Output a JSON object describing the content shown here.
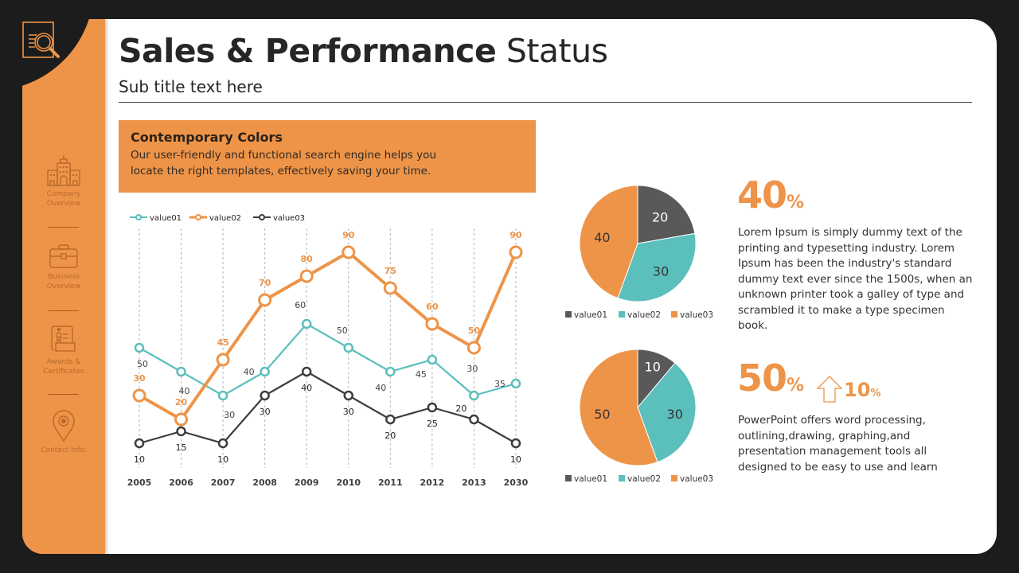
{
  "header": {
    "title_bold": "Sales & Performance",
    "title_light": "Status",
    "subtitle": "Sub title text here"
  },
  "sidebar": {
    "logo_icon": "document-search-icon",
    "items": [
      {
        "label_line1": "Company",
        "label_line2": "Overview",
        "icon": "building-icon"
      },
      {
        "label_line1": "Business",
        "label_line2": "Overview",
        "icon": "briefcase-icon"
      },
      {
        "label_line1": "Awards &",
        "label_line2": "Certificates",
        "icon": "certificate-icon"
      },
      {
        "label_line1": "Contact Info.",
        "label_line2": "",
        "icon": "location-pin-icon"
      }
    ]
  },
  "banner": {
    "title": "Contemporary Colors",
    "text_line1": "Our user-friendly and functional search engine helps you",
    "text_line2": "locate the right templates, effectively saving your time."
  },
  "colors": {
    "accent": "#ee9448",
    "teal": "#5bbfbc",
    "dark": "#3d3d3d",
    "pie_dark": "#595959"
  },
  "stats": [
    {
      "value": "40",
      "unit": "%",
      "text": [
        "Lorem Ipsum is simply dummy text of the",
        "printing and typesetting industry. Lorem",
        "Ipsum has been the industry's standard",
        "dummy text ever since the 1500s, when an",
        "unknown printer took a galley of type and",
        "scrambled it to make a type specimen",
        "book."
      ]
    },
    {
      "value": "50",
      "unit": "%",
      "change_icon": "arrow-up-icon",
      "change_value": "10",
      "change_unit": "%",
      "text": [
        "PowerPoint offers word processing,",
        "outlining,drawing, graphing,and",
        "presentation management tools all",
        "designed to be easy to use and learn"
      ]
    }
  ],
  "chart_data": [
    {
      "type": "line",
      "title": "",
      "xlabel": "",
      "ylabel": "",
      "categories": [
        "2005",
        "2006",
        "2007",
        "2008",
        "2009",
        "2010",
        "2011",
        "2012",
        "2013",
        "2030"
      ],
      "ylim": [
        0,
        90
      ],
      "grid": "vertical dashed",
      "legend": "top-left",
      "series": [
        {
          "name": "value01",
          "color": "#5bbfbc",
          "values": [
            50,
            40,
            30,
            40,
            60,
            50,
            40,
            45,
            30,
            35
          ]
        },
        {
          "name": "value02",
          "color": "#ee9448",
          "values": [
            30,
            20,
            45,
            70,
            80,
            90,
            75,
            60,
            50,
            90
          ]
        },
        {
          "name": "value03",
          "color": "#3d3d3d",
          "values": [
            10,
            15,
            10,
            30,
            40,
            30,
            20,
            25,
            20,
            10
          ]
        }
      ]
    },
    {
      "type": "pie",
      "title": "",
      "legend": "bottom",
      "labels": [
        "value01",
        "value02",
        "value03"
      ],
      "values": [
        20,
        30,
        40
      ],
      "colors": [
        "#595959",
        "#5bbfbc",
        "#ee9448"
      ]
    },
    {
      "type": "pie",
      "title": "",
      "legend": "bottom",
      "labels": [
        "value01",
        "value02",
        "value03"
      ],
      "values": [
        10,
        30,
        50
      ],
      "colors": [
        "#595959",
        "#5bbfbc",
        "#ee9448"
      ]
    }
  ]
}
